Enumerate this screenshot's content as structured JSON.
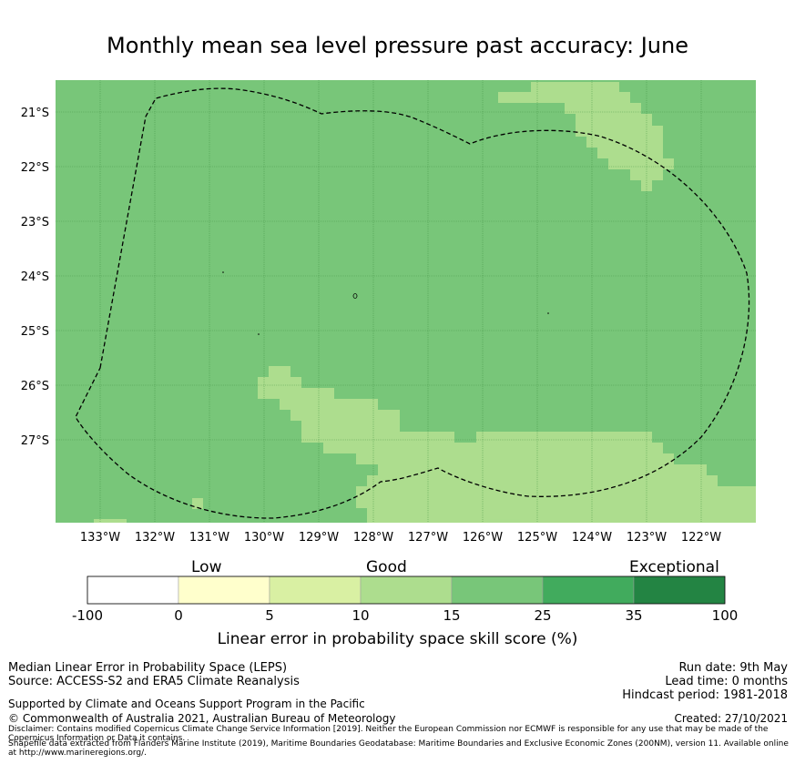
{
  "title": "Monthly mean sea level pressure past accuracy: June",
  "map": {
    "lon_ticks": [
      "133°W",
      "132°W",
      "131°W",
      "130°W",
      "129°W",
      "128°W",
      "127°W",
      "126°W",
      "125°W",
      "124°W",
      "123°W",
      "122°W"
    ],
    "lat_ticks": [
      "21°S",
      "22°S",
      "23°S",
      "24°S",
      "25°S",
      "26°S",
      "27°S"
    ],
    "lon_range": [
      -133.8,
      -121.0
    ],
    "lat_range": [
      -28.5,
      -20.6
    ],
    "dominant_category": "15 to 25",
    "secondary_category": "10 to 15",
    "boundary_style": "dashed"
  },
  "colors": {
    "cat_neg100_0": "#ffffff",
    "cat_0_5": "#ffffcc",
    "cat_5_10": "#d9f0a3",
    "cat_10_15": "#addd8e",
    "cat_15_25": "#78c679",
    "cat_25_35": "#41ab5d",
    "cat_35_100": "#238443"
  },
  "colorbar": {
    "labels": {
      "low": "Low",
      "good": "Good",
      "exceptional": "Exceptional"
    },
    "ticks": [
      "-100",
      "0",
      "5",
      "10",
      "15",
      "25",
      "35",
      "100"
    ],
    "title": "Linear error in probability space skill score (%)"
  },
  "footer": {
    "left_line1": "Median Linear Error in Probability Space (LEPS)",
    "left_line2": "Source: ACCESS-S2 and ERA5 Climate Reanalysis",
    "support": "Supported by Climate and Oceans Support Program in the Pacific",
    "copyright": "© Commonwealth of Australia 2021, Australian Bureau of Meteorology",
    "run_date": "Run date: 9th May",
    "lead_time": "Lead time: 0 months",
    "hindcast": "Hindcast period: 1981-2018",
    "created": "Created: 27/10/2021",
    "disclaimer": "Disclaimer: Contains modified Copernicus Climate Change Service Information [2019]. Neither the European Commission nor ECMWF is responsible for any use that may be made of the Copernicus Information or Data it contains.",
    "shapefile": "Shapefile data extracted from Flanders Marine Institute (2019), Maritime Boundaries Geodatabase: Maritime Boundaries and Exclusive Economic Zones (200NM), version 11. Available online at http://www.marineregions.org/."
  }
}
